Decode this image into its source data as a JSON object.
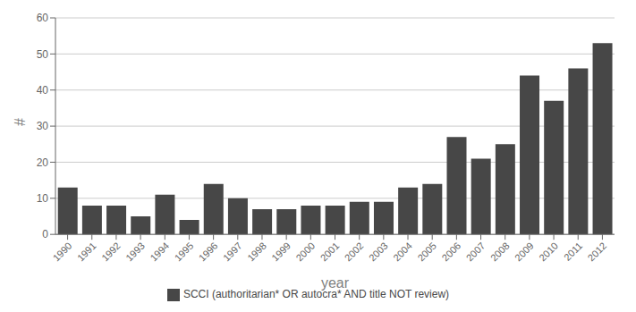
{
  "chart_data": {
    "type": "bar",
    "xlabel": "year",
    "ylabel": "#",
    "categories": [
      "1990",
      "1991",
      "1992",
      "1993",
      "1994",
      "1995",
      "1996",
      "1997",
      "1998",
      "1999",
      "2000",
      "2001",
      "2002",
      "2003",
      "2004",
      "2005",
      "2006",
      "2007",
      "2008",
      "2009",
      "2010",
      "2011",
      "2012"
    ],
    "series": [
      {
        "name": "SCCI (authoritarian* OR autocra* AND title NOT review)",
        "color": "#474747",
        "values": [
          13,
          8,
          8,
          5,
          11,
          4,
          14,
          10,
          7,
          7,
          8,
          8,
          9,
          9,
          13,
          14,
          27,
          21,
          25,
          44,
          37,
          46,
          53
        ]
      }
    ],
    "ylim": [
      0,
      60
    ],
    "yticks": [
      0,
      10,
      20,
      30,
      40,
      50,
      60
    ],
    "grid": true,
    "legend": "bottom"
  }
}
